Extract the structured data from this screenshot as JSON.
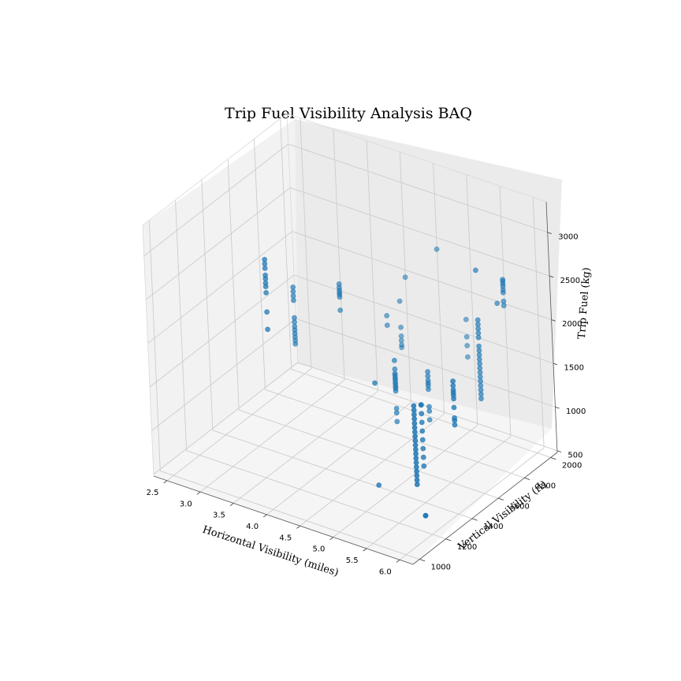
{
  "chart_data": {
    "type": "scatter3d",
    "title": "Trip Fuel Visibility Analysis BAQ",
    "xlabel": "Horizontal Visibility (miles)",
    "ylabel": "Vertical Visibility (ft)",
    "zlabel": "Trip Fuel (kg)",
    "xlim": [
      2.3,
      6.2
    ],
    "ylim": [
      950,
      2050
    ],
    "zlim": [
      480,
      3350
    ],
    "xticks": [
      "2.5",
      "3.0",
      "3.5",
      "4.0",
      "4.5",
      "5.0",
      "5.5",
      "6.0"
    ],
    "yticks": [
      "1000",
      "1200",
      "1400",
      "1600",
      "1800",
      "2000"
    ],
    "zticks": [
      "500",
      "1000",
      "1500",
      "2000",
      "2500",
      "3000"
    ],
    "grid": true,
    "point_color": "#1f77b4",
    "pane_colors": {
      "left": "#f2f2f2",
      "back": "#ebebeb",
      "floor": "#f5f5f5"
    },
    "series": [
      {
        "points": [
          [
            3.0,
            1500,
            2500
          ],
          [
            3.0,
            1500,
            2450
          ],
          [
            3.0,
            1500,
            2400
          ],
          [
            3.0,
            1500,
            2320
          ],
          [
            3.0,
            1500,
            2280
          ],
          [
            3.0,
            1500,
            2230
          ],
          [
            3.0,
            1500,
            2190
          ],
          [
            3.0,
            1500,
            2120
          ],
          [
            3.0,
            1500,
            1900
          ],
          [
            3.0,
            1500,
            1700
          ],
          [
            3.0,
            1700,
            1950
          ],
          [
            3.0,
            1700,
            1900
          ],
          [
            3.0,
            1700,
            1850
          ],
          [
            3.0,
            1700,
            1800
          ],
          [
            3.0,
            1700,
            1600
          ],
          [
            3.0,
            1700,
            1550
          ],
          [
            3.0,
            1700,
            1500
          ],
          [
            3.0,
            1700,
            1460
          ],
          [
            3.0,
            1700,
            1420
          ],
          [
            3.0,
            1700,
            1380
          ],
          [
            3.0,
            1700,
            1340
          ],
          [
            3.0,
            1700,
            1300
          ],
          [
            3.5,
            1800,
            2000
          ],
          [
            3.5,
            1800,
            1960
          ],
          [
            3.5,
            1800,
            1930
          ],
          [
            3.5,
            1800,
            1900
          ],
          [
            3.5,
            1800,
            1880
          ],
          [
            3.5,
            1800,
            1850
          ],
          [
            3.5,
            1800,
            1700
          ],
          [
            4.0,
            1900,
            1650
          ],
          [
            4.0,
            1900,
            1540
          ],
          [
            4.0,
            2000,
            1700
          ],
          [
            4.0,
            2000,
            1400
          ],
          [
            4.0,
            2000,
            1300
          ],
          [
            4.0,
            2000,
            1250
          ],
          [
            4.0,
            2000,
            1200
          ],
          [
            4.0,
            2000,
            1170
          ],
          [
            4.5,
            1700,
            1500
          ],
          [
            4.5,
            1700,
            1400
          ],
          [
            4.5,
            1700,
            1350
          ],
          [
            4.5,
            1700,
            1330
          ],
          [
            4.5,
            1700,
            1300
          ],
          [
            4.5,
            1700,
            1280
          ],
          [
            4.5,
            1700,
            1250
          ],
          [
            4.5,
            1700,
            1230
          ],
          [
            4.5,
            1700,
            1200
          ],
          [
            4.5,
            1700,
            1180
          ],
          [
            4.5,
            1700,
            1150
          ],
          [
            4.5,
            1700,
            950
          ],
          [
            4.5,
            1700,
            900
          ],
          [
            4.5,
            1700,
            800
          ],
          [
            5.0,
            1700,
            1500
          ],
          [
            5.0,
            1700,
            1450
          ],
          [
            5.0,
            1700,
            1400
          ],
          [
            5.0,
            1700,
            1370
          ],
          [
            5.0,
            1700,
            1340
          ],
          [
            5.0,
            1700,
            1300
          ],
          [
            5.0,
            1700,
            1100
          ],
          [
            5.0,
            1700,
            1050
          ],
          [
            5.0,
            1700,
            950
          ],
          [
            5.0,
            2000,
            1750
          ],
          [
            5.0,
            2000,
            1550
          ],
          [
            5.0,
            2000,
            1450
          ],
          [
            5.0,
            2000,
            1320
          ],
          [
            5.5,
            1400,
            1600
          ],
          [
            5.5,
            1400,
            1600
          ],
          [
            5.5,
            1400,
            1500
          ],
          [
            5.5,
            1400,
            1400
          ],
          [
            5.5,
            1400,
            1300
          ],
          [
            5.5,
            1400,
            1200
          ],
          [
            5.5,
            1400,
            1100
          ],
          [
            5.5,
            1400,
            1000
          ],
          [
            5.5,
            1400,
            900
          ],
          [
            5.8,
            1200,
            1900
          ],
          [
            5.8,
            1200,
            1850
          ],
          [
            5.8,
            1200,
            1800
          ],
          [
            5.8,
            1200,
            1750
          ],
          [
            5.8,
            1200,
            1700
          ],
          [
            5.8,
            1200,
            1650
          ],
          [
            5.8,
            1200,
            1600
          ],
          [
            5.8,
            1200,
            1550
          ],
          [
            5.8,
            1200,
            1500
          ],
          [
            5.8,
            1200,
            1450
          ],
          [
            5.8,
            1200,
            1400
          ],
          [
            5.8,
            1200,
            1350
          ],
          [
            5.8,
            1200,
            1300
          ],
          [
            5.8,
            1200,
            1250
          ],
          [
            5.8,
            1200,
            1200
          ],
          [
            5.8,
            1200,
            1150
          ],
          [
            5.8,
            1200,
            1100
          ],
          [
            5.8,
            1200,
            1050
          ],
          [
            5.8,
            1200,
            1000
          ],
          [
            5.8,
            1700,
            2300
          ],
          [
            5.8,
            1700,
            2250
          ],
          [
            5.8,
            1700,
            2200
          ],
          [
            5.8,
            1700,
            2150
          ],
          [
            5.8,
            1700,
            2100
          ],
          [
            5.8,
            1700,
            2000
          ],
          [
            5.8,
            1700,
            1950
          ],
          [
            5.8,
            1700,
            1900
          ],
          [
            5.8,
            1700,
            1850
          ],
          [
            5.8,
            1700,
            1800
          ],
          [
            5.8,
            1700,
            1750
          ],
          [
            5.8,
            1700,
            1700
          ],
          [
            5.8,
            1700,
            1650
          ],
          [
            5.8,
            1700,
            1600
          ],
          [
            5.8,
            1700,
            1550
          ],
          [
            5.8,
            1700,
            1500
          ],
          [
            5.8,
            1700,
            1450
          ],
          [
            5.8,
            1700,
            1400
          ],
          [
            5.8,
            1700,
            2870
          ],
          [
            6.0,
            1400,
            2000
          ],
          [
            6.0,
            1400,
            1950
          ],
          [
            6.0,
            1400,
            1900
          ],
          [
            6.0,
            1400,
            1870
          ],
          [
            6.0,
            1400,
            1840
          ],
          [
            6.0,
            1400,
            1800
          ],
          [
            6.0,
            1400,
            1700
          ],
          [
            6.0,
            1400,
            1580
          ],
          [
            6.0,
            1400,
            1550
          ],
          [
            6.0,
            1400,
            1500
          ],
          [
            6.0,
            1800,
            2700
          ],
          [
            6.0,
            1800,
            2680
          ],
          [
            6.0,
            1800,
            2650
          ],
          [
            6.0,
            1800,
            2620
          ],
          [
            6.0,
            1800,
            2580
          ],
          [
            6.0,
            1800,
            2550
          ],
          [
            6.0,
            1800,
            2450
          ],
          [
            6.0,
            1800,
            2400
          ],
          [
            5.9,
            1800,
            2400
          ],
          [
            4.6,
            2000,
            2450
          ],
          [
            4.1,
            2000,
            2000
          ],
          [
            4.6,
            1500,
            1500
          ],
          [
            5.7,
            1300,
            500
          ],
          [
            5.7,
            1300,
            500
          ],
          [
            4.8,
            1400,
            500
          ]
        ]
      }
    ]
  }
}
